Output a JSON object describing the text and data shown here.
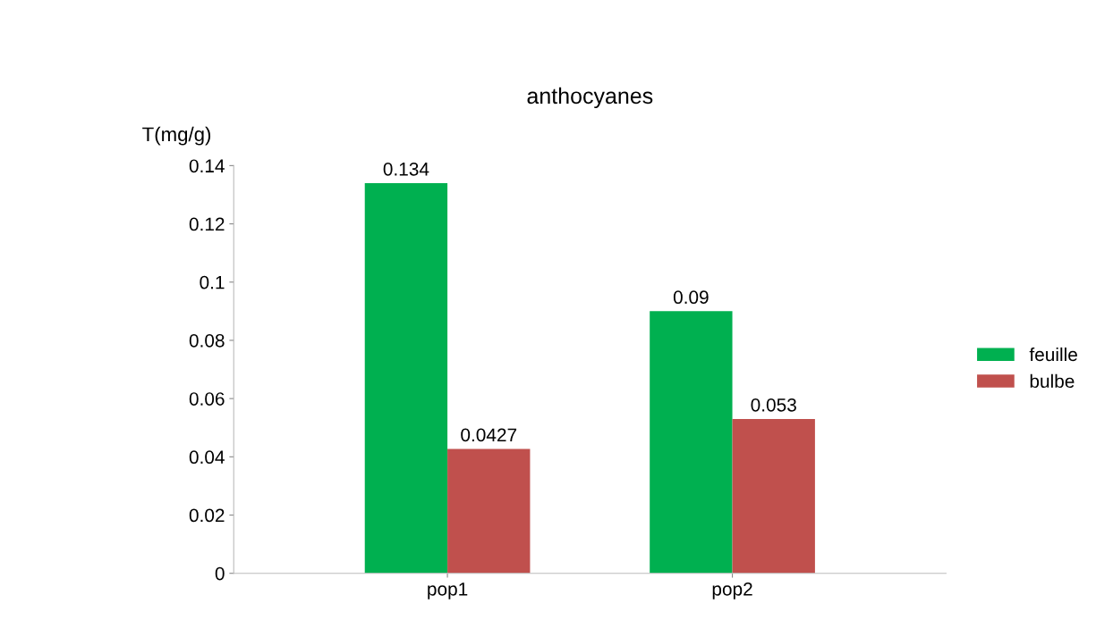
{
  "chart_data": {
    "type": "bar",
    "title": "anthocyanes",
    "ylabel": "T(mg/g)",
    "categories": [
      "pop1",
      "pop2"
    ],
    "series": [
      {
        "name": "feuille",
        "color": "#00b050",
        "values": [
          0.134,
          0.09
        ]
      },
      {
        "name": "bulbe",
        "color": "#c0504d",
        "values": [
          0.0427,
          0.053
        ]
      }
    ],
    "ylim": [
      0,
      0.14
    ],
    "yticks": [
      0,
      0.02,
      0.04,
      0.06,
      0.08,
      0.1,
      0.12,
      0.14
    ],
    "data_labels": true,
    "grid": false,
    "legend": "right"
  }
}
